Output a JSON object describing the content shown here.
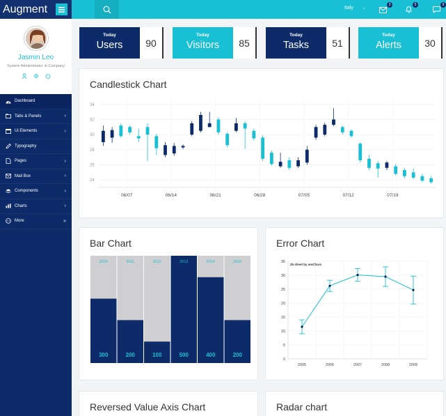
{
  "sidebar": {
    "brand": "Augment",
    "profile": {
      "name": "Jasmin Leo",
      "role": "System Administrator in Company"
    },
    "items": [
      {
        "label": "Dashboard",
        "icon": "dashboard-icon",
        "chevron": ""
      },
      {
        "label": "Tabs & Panels",
        "icon": "tabs-icon",
        "chevron": "›"
      },
      {
        "label": "Ui Elements",
        "icon": "ui-elements-icon",
        "chevron": "›"
      },
      {
        "label": "Typography",
        "icon": "pencil-icon",
        "chevron": ""
      },
      {
        "label": "Pages",
        "icon": "pages-icon",
        "chevron": "›"
      },
      {
        "label": "Mail Box",
        "icon": "mail-icon",
        "chevron": "›"
      },
      {
        "label": "Components",
        "icon": "components-icon",
        "chevron": "›"
      },
      {
        "label": "Charts",
        "icon": "charts-icon",
        "chevron": "›"
      },
      {
        "label": "More",
        "icon": "more-icon",
        "chevron": "»"
      }
    ]
  },
  "header": {
    "language": "Italy",
    "badges": {
      "mail": "3",
      "notifications": "5",
      "messages": "9"
    }
  },
  "stats": [
    {
      "label": "Today",
      "title": "Users",
      "value": "90"
    },
    {
      "label": "Today",
      "title": "Visitors",
      "value": "85"
    },
    {
      "label": "Today",
      "title": "Tasks",
      "value": "51"
    },
    {
      "label": "Today",
      "title": "Alerts",
      "value": "30"
    }
  ],
  "panels": {
    "candlestick": "Candlestick Chart",
    "bar": "Bar Chart",
    "error": "Error Chart",
    "reversed": "Reversed Value Axis Chart",
    "radar": "Radar chart"
  },
  "colors": {
    "primary": "#0d2b68",
    "accent": "#19bfd3",
    "background": "#f3f4f6"
  },
  "chart_data": [
    {
      "type": "candlestick",
      "title": "Candlestick Chart",
      "ylim": [
        23,
        35
      ],
      "yticks": [
        24,
        26,
        28,
        30,
        32,
        34
      ],
      "xtick_labels": [
        "06/07",
        "06/14",
        "06/21",
        "06/28",
        "07/05",
        "07/12",
        "07/19"
      ],
      "candles": [
        {
          "open": 29.0,
          "close": 30.5,
          "high": 31.2,
          "low": 28.5
        },
        {
          "open": 29.6,
          "close": 30.6,
          "high": 31.0,
          "low": 28.9
        },
        {
          "open": 31.2,
          "close": 29.8,
          "high": 31.5,
          "low": 29.6
        },
        {
          "open": 31.0,
          "close": 30.3,
          "high": 31.2,
          "low": 30.0
        },
        {
          "open": 29.8,
          "close": 29.5,
          "high": 30.8,
          "low": 29.0
        },
        {
          "open": 31.0,
          "close": 30.0,
          "high": 31.5,
          "low": 26.5
        },
        {
          "open": 29.8,
          "close": 28.2,
          "high": 30.1,
          "low": 27.3
        },
        {
          "open": 27.3,
          "close": 28.6,
          "high": 29.0,
          "low": 27.0
        },
        {
          "open": 27.5,
          "close": 28.5,
          "high": 28.9,
          "low": 27.2
        },
        {
          "open": 28.3,
          "close": 28.5,
          "high": 28.7,
          "low": 28.1
        },
        {
          "open": 30.0,
          "close": 31.5,
          "high": 31.8,
          "low": 29.8
        },
        {
          "open": 30.5,
          "close": 32.6,
          "high": 33.0,
          "low": 30.3
        },
        {
          "open": 31.0,
          "close": 31.5,
          "high": 33.0,
          "low": 31.0
        },
        {
          "open": 32.0,
          "close": 30.3,
          "high": 32.3,
          "low": 30.0
        },
        {
          "open": 30.1,
          "close": 28.6,
          "high": 30.3,
          "low": 28.3
        },
        {
          "open": 30.5,
          "close": 31.5,
          "high": 32.2,
          "low": 30.3
        },
        {
          "open": 31.5,
          "close": 30.8,
          "high": 31.8,
          "low": 28.1
        },
        {
          "open": 30.5,
          "close": 29.5,
          "high": 30.8,
          "low": 29.2
        },
        {
          "open": 29.6,
          "close": 26.8,
          "high": 29.9,
          "low": 26.5
        },
        {
          "open": 27.6,
          "close": 26.1,
          "high": 27.9,
          "low": 25.9
        },
        {
          "open": 25.8,
          "close": 26.4,
          "high": 27.6,
          "low": 25.6
        },
        {
          "open": 26.6,
          "close": 25.6,
          "high": 27.0,
          "low": 25.3
        },
        {
          "open": 25.8,
          "close": 26.6,
          "high": 27.0,
          "low": 25.6
        },
        {
          "open": 26.3,
          "close": 28.0,
          "high": 28.5,
          "low": 26.0
        },
        {
          "open": 29.6,
          "close": 31.0,
          "high": 31.3,
          "low": 29.3
        },
        {
          "open": 30.0,
          "close": 31.3,
          "high": 31.6,
          "low": 29.8
        },
        {
          "open": 31.3,
          "close": 32.0,
          "high": 33.5,
          "low": 31.1
        },
        {
          "open": 31.0,
          "close": 30.3,
          "high": 31.2,
          "low": 30.0
        },
        {
          "open": 30.5,
          "close": 29.8,
          "high": 30.7,
          "low": 29.6
        },
        {
          "open": 28.8,
          "close": 26.6,
          "high": 29.0,
          "low": 26.3
        },
        {
          "open": 26.8,
          "close": 25.6,
          "high": 27.3,
          "low": 25.3
        },
        {
          "open": 26.2,
          "close": 25.5,
          "high": 26.5,
          "low": 24.3
        },
        {
          "open": 25.6,
          "close": 26.3,
          "high": 26.5,
          "low": 25.3
        },
        {
          "open": 25.8,
          "close": 24.8,
          "high": 26.1,
          "low": 24.6
        },
        {
          "open": 25.3,
          "close": 24.5,
          "high": 25.6,
          "low": 24.2
        },
        {
          "open": 25.0,
          "close": 24.3,
          "high": 25.5,
          "low": 24.1
        },
        {
          "open": 24.5,
          "close": 23.9,
          "high": 24.8,
          "low": 23.7
        },
        {
          "open": 24.2,
          "close": 23.7,
          "high": 24.5,
          "low": 23.5
        }
      ]
    },
    {
      "type": "bar",
      "title": "Bar Chart",
      "categories": [
        "2010",
        "2011",
        "2012",
        "2013",
        "2014",
        "2015"
      ],
      "values": [
        300,
        200,
        100,
        500,
        400,
        200
      ],
      "ylim": [
        0,
        500
      ]
    },
    {
      "type": "scatter",
      "title": "Error Chart",
      "caption": "25 sheet by amChars",
      "x": [
        "2005",
        "2006",
        "2007",
        "2008",
        "2009"
      ],
      "y": [
        11.5,
        26.2,
        30.1,
        29.5,
        24.7
      ],
      "error": [
        2.5,
        2.0,
        2.3,
        3.5,
        5.0
      ],
      "ylim": [
        0,
        35
      ],
      "yticks": [
        0,
        5,
        10,
        15,
        20,
        25,
        30,
        35
      ]
    }
  ]
}
